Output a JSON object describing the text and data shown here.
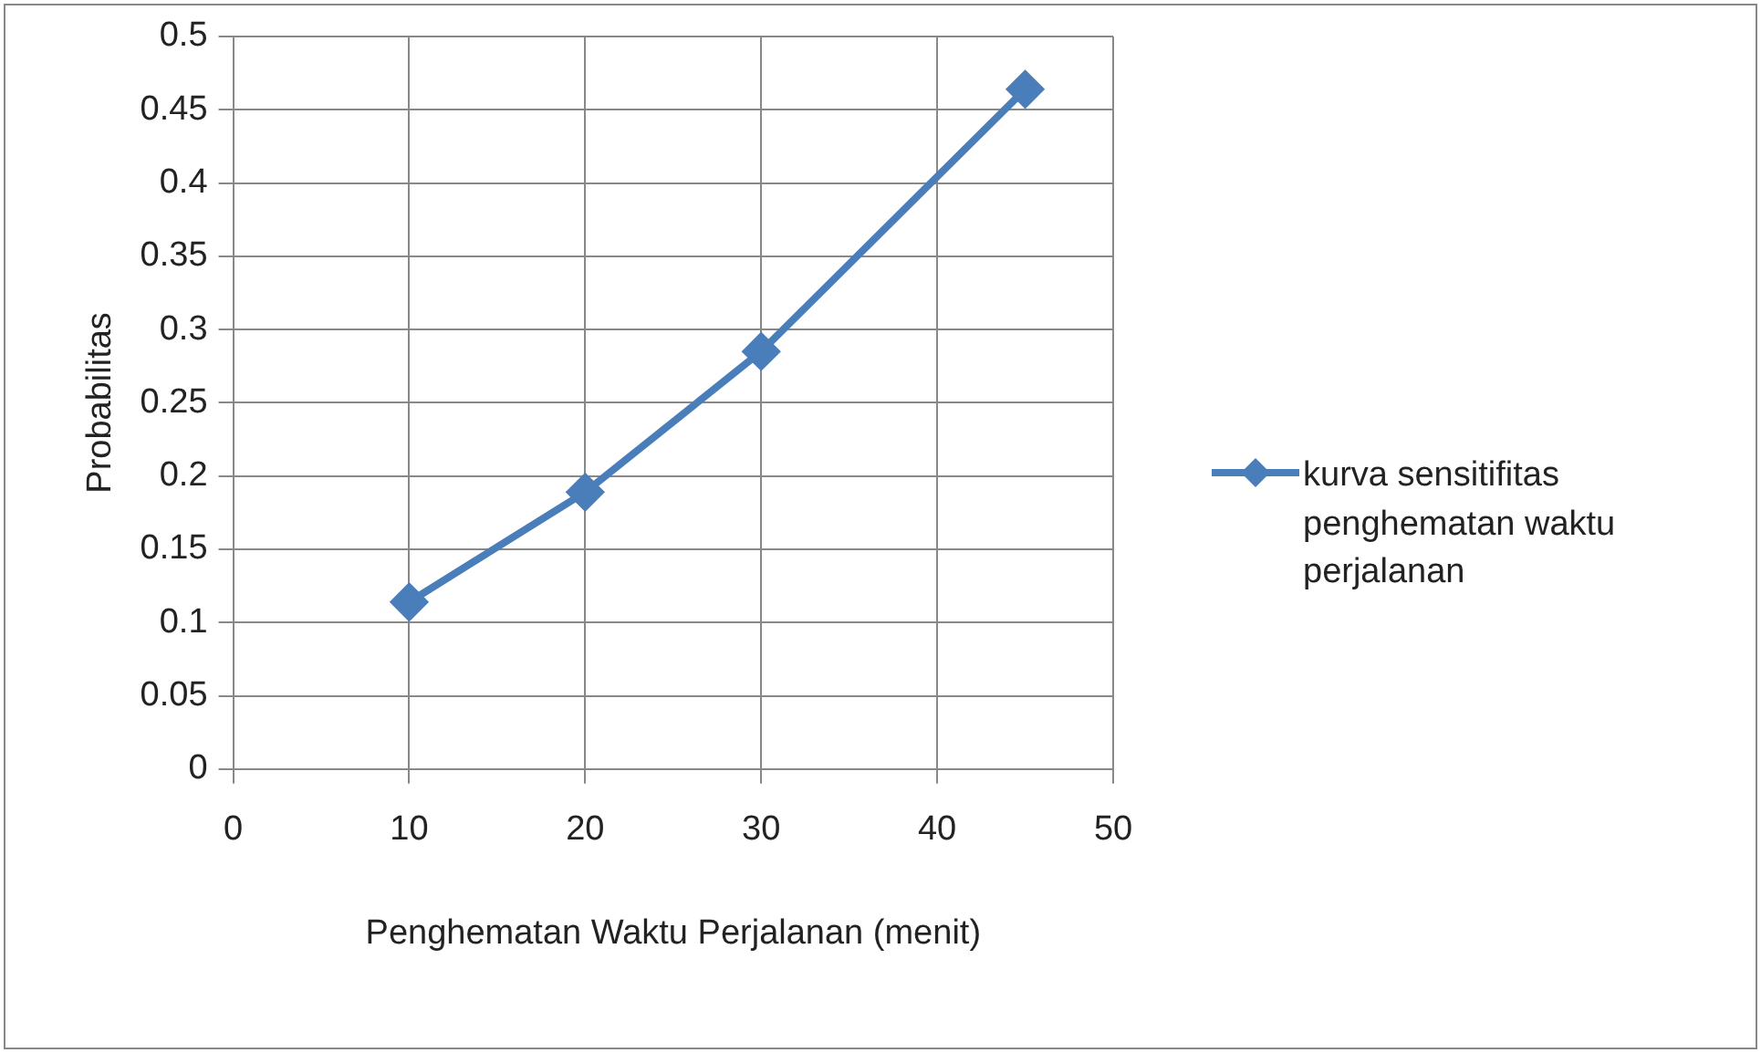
{
  "chart_data": {
    "type": "line",
    "xlabel": "Penghematan Waktu Perjalanan (menit)",
    "ylabel": "Probabilitas",
    "x": [
      10,
      20,
      30,
      45
    ],
    "series": [
      {
        "name": "kurva sensitifitas penghematan waktu perjalanan",
        "color": "#4a7ebb",
        "values": [
          0.114,
          0.189,
          0.285,
          0.464
        ]
      }
    ],
    "xlim": [
      0,
      50
    ],
    "xticks": [
      0,
      10,
      20,
      30,
      40,
      50
    ],
    "ylim": [
      0,
      0.5
    ],
    "yticks": [
      0,
      0.05,
      0.1,
      0.15,
      0.2,
      0.25,
      0.3,
      0.35,
      0.4,
      0.45,
      0.5
    ],
    "grid": true,
    "legend": "right",
    "marker": "diamond",
    "line_style": "solid"
  }
}
